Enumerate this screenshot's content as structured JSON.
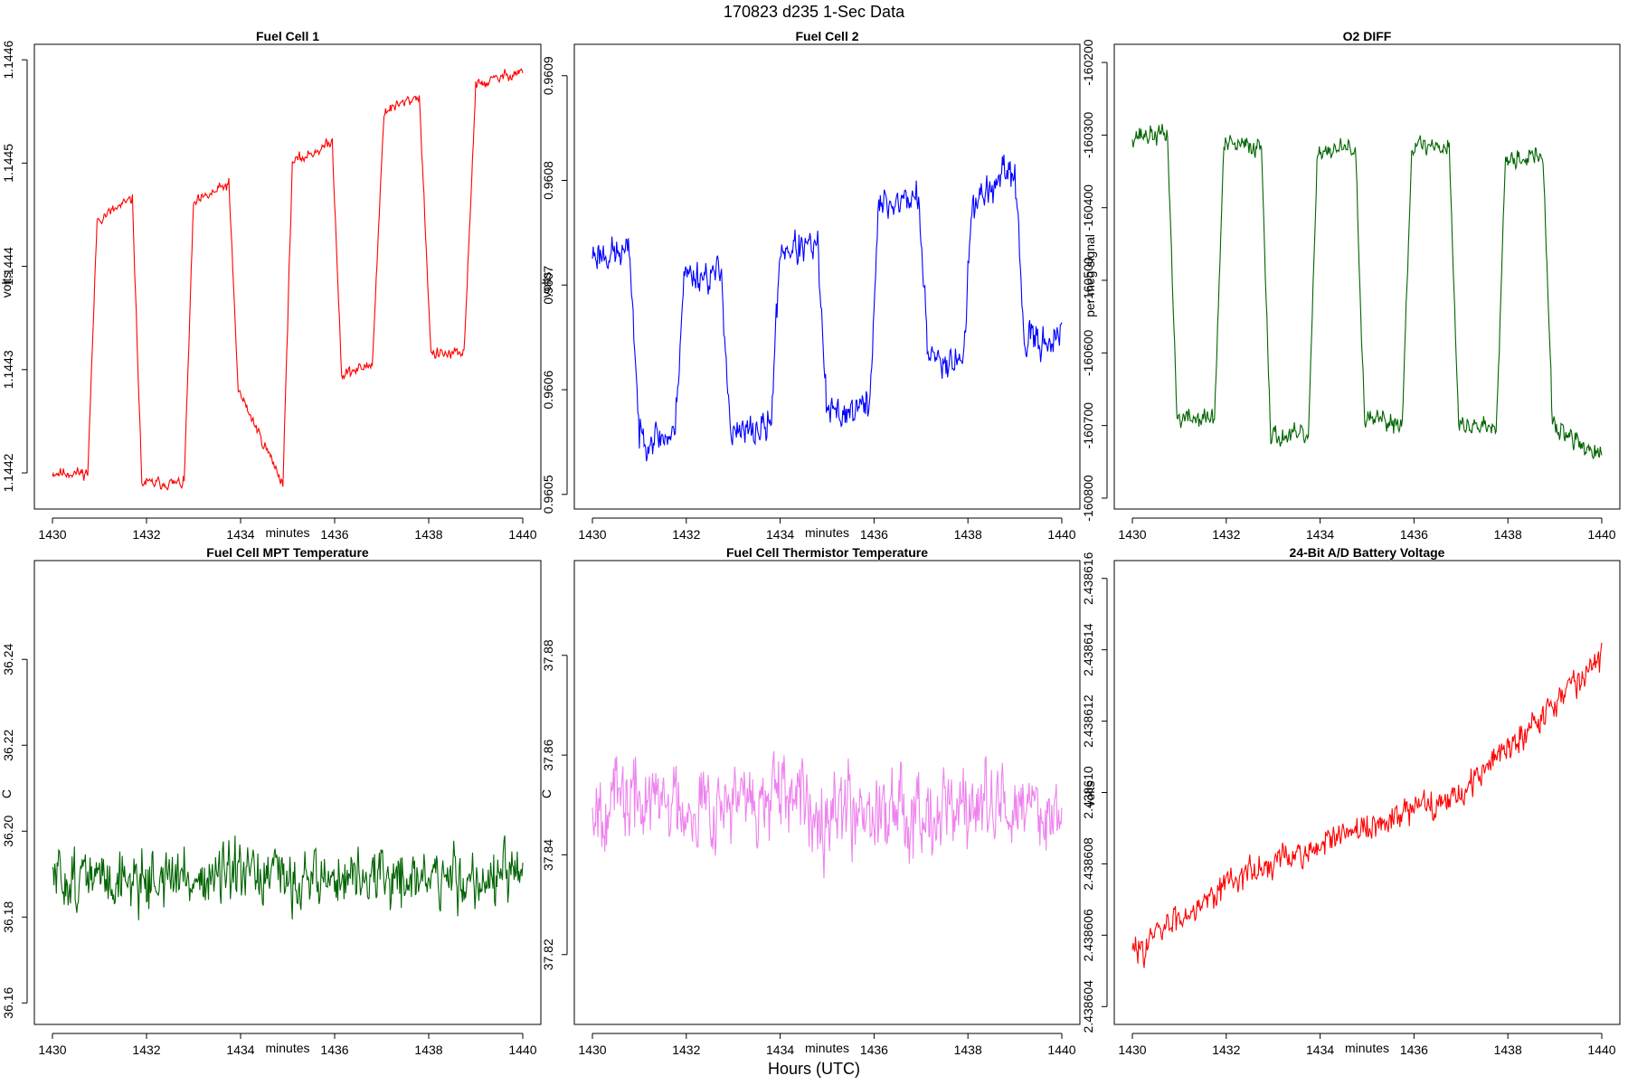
{
  "figure": {
    "title": "170823   d235   1-Sec Data",
    "xlabel": "Hours (UTC)"
  },
  "chart_data": [
    {
      "type": "line",
      "title": "Fuel Cell 1",
      "xlabel": "minutes",
      "ylabel": "volts",
      "color": "#ff0000",
      "xlim": [
        1430,
        1440
      ],
      "ylim": [
        1.144165,
        1.144615
      ],
      "xticks": [
        1430,
        1432,
        1434,
        1436,
        1438,
        1440
      ],
      "yticks": [
        1.1442,
        1.1443,
        1.1444,
        1.1445,
        1.1446
      ],
      "ytick_labels": [
        "1.1442",
        "1.1443",
        "1.1444",
        "1.1445",
        "1.1446"
      ],
      "levels": [
        [
          1430,
          1.1442
        ],
        [
          1430.75,
          1.1442
        ],
        [
          1430.95,
          1.144445
        ],
        [
          1431.7,
          1.144465
        ],
        [
          1431.9,
          1.14419
        ],
        [
          1432.8,
          1.14419
        ],
        [
          1433.0,
          1.14446
        ],
        [
          1433.75,
          1.14448
        ],
        [
          1433.95,
          1.14428
        ],
        [
          1434.9,
          1.14419
        ],
        [
          1435.1,
          1.1445
        ],
        [
          1435.95,
          1.14452
        ],
        [
          1436.15,
          1.144295
        ],
        [
          1436.8,
          1.144305
        ],
        [
          1437.05,
          1.14455
        ],
        [
          1437.8,
          1.144565
        ],
        [
          1438.05,
          1.144315
        ],
        [
          1438.75,
          1.144315
        ],
        [
          1439.0,
          1.144575
        ],
        [
          1440,
          1.14459
        ]
      ],
      "noise": 7.5e-06,
      "seed": 11
    },
    {
      "type": "line",
      "title": "Fuel Cell 2",
      "xlabel": "minutes",
      "ylabel": "volts",
      "color": "#0000ff",
      "xlim": [
        1430,
        1440
      ],
      "ylim": [
        0.960486,
        0.96093
      ],
      "xticks": [
        1430,
        1432,
        1434,
        1436,
        1438,
        1440
      ],
      "yticks": [
        0.9605,
        0.9606,
        0.9607,
        0.9608,
        0.9609
      ],
      "ytick_labels": [
        "0.9605",
        "0.9606",
        "0.9607",
        "0.9608",
        "0.9609"
      ],
      "levels": [
        [
          1430,
          0.96073
        ],
        [
          1430.8,
          0.96073
        ],
        [
          1431.0,
          0.960555
        ],
        [
          1431.75,
          0.960555
        ],
        [
          1431.95,
          0.96071
        ],
        [
          1432.75,
          0.96071
        ],
        [
          1432.95,
          0.960555
        ],
        [
          1433.8,
          0.960565
        ],
        [
          1434.0,
          0.960735
        ],
        [
          1434.8,
          0.960735
        ],
        [
          1435.0,
          0.960575
        ],
        [
          1435.9,
          0.960585
        ],
        [
          1436.1,
          0.960775
        ],
        [
          1436.95,
          0.960785
        ],
        [
          1437.15,
          0.96063
        ],
        [
          1437.9,
          0.96063
        ],
        [
          1438.1,
          0.96078
        ],
        [
          1439.0,
          0.96081
        ],
        [
          1439.2,
          0.960645
        ],
        [
          1440,
          0.96065
        ]
      ],
      "noise": 2.2e-05,
      "seed": 23
    },
    {
      "type": "line",
      "title": "O2 DIFF",
      "xlabel": "",
      "ylabel": "per meg signal",
      "color": "#006400",
      "xlim": [
        1430,
        1440
      ],
      "ylim": [
        -160815,
        -160175
      ],
      "xticks": [
        1430,
        1432,
        1434,
        1436,
        1438,
        1440
      ],
      "yticks": [
        -160800,
        -160700,
        -160600,
        -160500,
        -160400,
        -160300,
        -160200
      ],
      "ytick_labels": [
        "-160800",
        "-160700",
        "-160600",
        "-160500",
        "-160400",
        "-160300",
        "-160200"
      ],
      "levels": [
        [
          1430,
          -160300
        ],
        [
          1430.75,
          -160300
        ],
        [
          1430.95,
          -160690
        ],
        [
          1431.75,
          -160690
        ],
        [
          1431.95,
          -160315
        ],
        [
          1432.75,
          -160315
        ],
        [
          1432.95,
          -160715
        ],
        [
          1433.75,
          -160715
        ],
        [
          1433.95,
          -160320
        ],
        [
          1434.75,
          -160320
        ],
        [
          1434.95,
          -160695
        ],
        [
          1435.75,
          -160695
        ],
        [
          1435.95,
          -160315
        ],
        [
          1436.75,
          -160315
        ],
        [
          1436.95,
          -160700
        ],
        [
          1437.75,
          -160700
        ],
        [
          1437.95,
          -160330
        ],
        [
          1438.75,
          -160330
        ],
        [
          1438.95,
          -160700
        ],
        [
          1440,
          -160745
        ]
      ],
      "noise": 19,
      "seed": 37
    },
    {
      "type": "line",
      "title": "Fuel Cell MPT Temperature",
      "xlabel": "minutes",
      "ylabel": "C",
      "color": "#006400",
      "xlim": [
        1430,
        1440
      ],
      "ylim": [
        36.155,
        36.263
      ],
      "xticks": [
        1430,
        1432,
        1434,
        1436,
        1438,
        1440
      ],
      "yticks": [
        36.16,
        36.18,
        36.2,
        36.22,
        36.24
      ],
      "ytick_labels": [
        "36.16",
        "36.18",
        "36.20",
        "36.22",
        "36.24"
      ],
      "levels": [
        [
          1430,
          36.189
        ],
        [
          1440,
          36.189
        ]
      ],
      "noise": 0.0095,
      "seed": 51
    },
    {
      "type": "line",
      "title": "Fuel Cell Thermistor Temperature",
      "xlabel": "minutes",
      "ylabel": "C",
      "color": "#ee82ee",
      "xlim": [
        1430,
        1440
      ],
      "ylim": [
        37.806,
        37.899
      ],
      "xticks": [
        1430,
        1432,
        1434,
        1436,
        1438,
        1440
      ],
      "yticks": [
        37.82,
        37.84,
        37.86,
        37.88
      ],
      "ytick_labels": [
        "37.82",
        "37.84",
        "37.86",
        "37.88"
      ],
      "levels": [
        [
          1430,
          37.851
        ],
        [
          1440,
          37.849
        ]
      ],
      "noise": 0.0115,
      "seed": 67
    },
    {
      "type": "line",
      "title": "24-Bit A/D Battery Voltage",
      "xlabel": "minutes",
      "ylabel": "volts",
      "color": "#ff0000",
      "xlim": [
        1430,
        1440
      ],
      "ylim": [
        2.4386035,
        2.4386165
      ],
      "xticks": [
        1430,
        1432,
        1434,
        1436,
        1438,
        1440
      ],
      "yticks": [
        2.438604,
        2.438606,
        2.438608,
        2.43861,
        2.438612,
        2.438614,
        2.438616
      ],
      "ytick_labels": [
        "2.438604",
        "2.438606",
        "2.438608",
        "2.438610",
        "2.438612",
        "2.438614",
        "2.438616"
      ],
      "levels": [
        [
          1430,
          2.4386055
        ],
        [
          1432,
          2.4386075
        ],
        [
          1434,
          2.4386085
        ],
        [
          1436,
          2.4386095
        ],
        [
          1437,
          2.43861
        ],
        [
          1438,
          2.4386113
        ],
        [
          1440,
          2.4386138
        ]
      ],
      "noise": 5.5e-07,
      "seed": 83
    }
  ]
}
